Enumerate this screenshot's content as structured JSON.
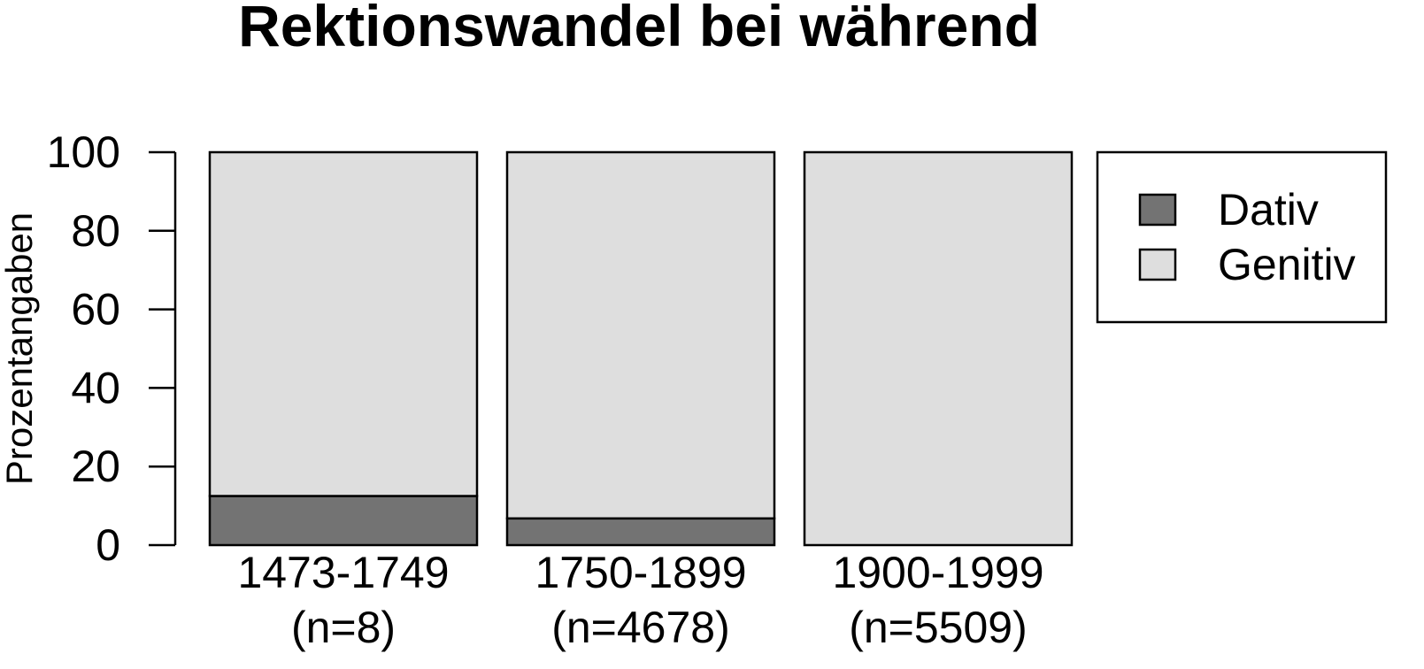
{
  "chart_data": {
    "type": "bar",
    "stacked": true,
    "percent": true,
    "title": "Rektionswandel bei während",
    "ylabel": "Prozentangaben",
    "xlabel": "",
    "ylim": [
      0,
      100
    ],
    "yticks": [
      "0",
      "20",
      "40",
      "60",
      "80",
      "100"
    ],
    "categories": [
      "1473-1749",
      "1750-1899",
      "1900-1999"
    ],
    "category_counts": [
      "(n=8)",
      "(n=4678)",
      "(n=5509)"
    ],
    "series": [
      {
        "name": "Dativ",
        "values": [
          12.5,
          6.8,
          0.0
        ],
        "color": "#737373"
      },
      {
        "name": "Genitiv",
        "values": [
          87.5,
          93.2,
          100.0
        ],
        "color": "#dedede"
      }
    ],
    "legend_position": "right",
    "grid": false
  }
}
